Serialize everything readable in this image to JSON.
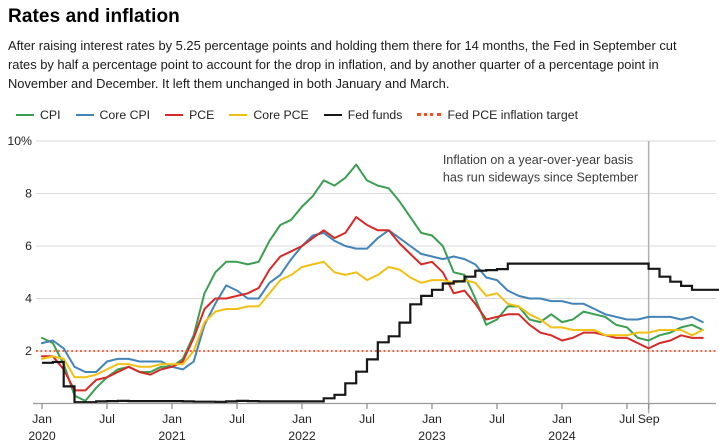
{
  "header": {
    "title": "Rates and inflation",
    "description": "After raising interest rates by 5.25 percentage points and holding them there for 14 months, the Fed in September cut rates by half a percentage point to account for the drop in inflation, and by another quarter of a percentage point in November and December. It left them unchanged in both January and March."
  },
  "colors": {
    "cpi": "#3b9e51",
    "core_cpi": "#4384b8",
    "pce": "#d62a28",
    "core_pce": "#f2c014",
    "fed_funds": "#161616",
    "target": "#e8522b",
    "grid": "#dadada",
    "axis": "#9a9a9a",
    "tick": "#8a8a8a",
    "label": "#222222",
    "marker": "#b0b0b0",
    "annotation": "#3c3c3c"
  },
  "legend": {
    "position": "top",
    "items": [
      {
        "label": "CPI",
        "color": "#3b9e51",
        "style": "solid"
      },
      {
        "label": "Core CPI",
        "color": "#4384b8",
        "style": "solid"
      },
      {
        "label": "PCE",
        "color": "#d62a28",
        "style": "solid"
      },
      {
        "label": "Core PCE",
        "color": "#f2c014",
        "style": "solid"
      },
      {
        "label": "Fed funds",
        "color": "#161616",
        "style": "solid"
      },
      {
        "label": "Fed PCE inflation target",
        "color": "#e8522b",
        "style": "dotted"
      }
    ]
  },
  "chart_data": {
    "type": "line",
    "x_start": "2020-01",
    "x_step_months": 1,
    "ylim": [
      0,
      10
    ],
    "yticks": [
      2,
      4,
      6,
      8,
      10
    ],
    "ytick_top_label": "10%",
    "grid": true,
    "xticks": [
      {
        "m": 0,
        "label": "Jan",
        "year": "2020"
      },
      {
        "m": 6,
        "label": "Jul",
        "year": ""
      },
      {
        "m": 12,
        "label": "Jan",
        "year": "2021"
      },
      {
        "m": 18,
        "label": "Jul",
        "year": ""
      },
      {
        "m": 24,
        "label": "Jan",
        "year": "2022"
      },
      {
        "m": 30,
        "label": "Jul",
        "year": ""
      },
      {
        "m": 36,
        "label": "Jan",
        "year": "2023"
      },
      {
        "m": 42,
        "label": "Jul",
        "year": ""
      },
      {
        "m": 48,
        "label": "Jan",
        "year": "2024"
      },
      {
        "m": 54,
        "label": "Jul",
        "year": ""
      },
      {
        "m": 56,
        "label": "Sep",
        "year": ""
      }
    ],
    "series": [
      {
        "name": "CPI",
        "color": "#3b9e51",
        "draw": "line",
        "values": [
          2.5,
          2.3,
          1.5,
          0.3,
          0.1,
          0.6,
          1.0,
          1.3,
          1.4,
          1.2,
          1.2,
          1.4,
          1.4,
          1.7,
          2.6,
          4.2,
          5.0,
          5.4,
          5.4,
          5.3,
          5.4,
          6.2,
          6.8,
          7.0,
          7.5,
          7.9,
          8.5,
          8.3,
          8.6,
          9.1,
          8.5,
          8.3,
          8.2,
          7.7,
          7.1,
          6.5,
          6.4,
          6.0,
          5.0,
          4.9,
          4.0,
          3.0,
          3.2,
          3.7,
          3.7,
          3.2,
          3.1,
          3.4,
          3.1,
          3.2,
          3.5,
          3.4,
          3.3,
          3.0,
          2.9,
          2.5,
          2.4,
          2.6,
          2.7,
          2.9,
          3.0,
          2.8
        ]
      },
      {
        "name": "Core CPI",
        "color": "#4384b8",
        "draw": "line",
        "values": [
          2.3,
          2.4,
          2.1,
          1.4,
          1.2,
          1.2,
          1.6,
          1.7,
          1.7,
          1.6,
          1.6,
          1.6,
          1.4,
          1.3,
          1.6,
          3.0,
          3.8,
          4.5,
          4.3,
          4.0,
          4.0,
          4.6,
          4.9,
          5.5,
          6.0,
          6.4,
          6.5,
          6.2,
          6.0,
          5.9,
          5.9,
          6.3,
          6.6,
          6.3,
          6.0,
          5.7,
          5.6,
          5.5,
          5.6,
          5.5,
          5.3,
          4.8,
          4.7,
          4.3,
          4.1,
          4.0,
          4.0,
          3.9,
          3.9,
          3.8,
          3.8,
          3.6,
          3.4,
          3.3,
          3.2,
          3.2,
          3.3,
          3.3,
          3.3,
          3.2,
          3.3,
          3.1
        ]
      },
      {
        "name": "PCE",
        "color": "#d62a28",
        "draw": "line",
        "values": [
          1.8,
          1.8,
          1.3,
          0.5,
          0.5,
          0.9,
          1.0,
          1.2,
          1.4,
          1.2,
          1.1,
          1.3,
          1.4,
          1.6,
          2.5,
          3.6,
          4.0,
          4.0,
          4.1,
          4.2,
          4.4,
          5.1,
          5.6,
          5.8,
          6.0,
          6.3,
          6.6,
          6.3,
          6.5,
          7.1,
          6.8,
          6.6,
          6.6,
          6.1,
          5.7,
          5.3,
          5.4,
          5.0,
          4.2,
          4.3,
          3.8,
          3.2,
          3.3,
          3.4,
          3.4,
          3.0,
          2.7,
          2.6,
          2.4,
          2.5,
          2.7,
          2.7,
          2.6,
          2.5,
          2.5,
          2.3,
          2.1,
          2.3,
          2.4,
          2.6,
          2.5,
          2.5
        ]
      },
      {
        "name": "Core PCE",
        "color": "#f2c014",
        "draw": "line",
        "values": [
          1.7,
          1.8,
          1.7,
          1.0,
          1.0,
          1.1,
          1.3,
          1.5,
          1.5,
          1.4,
          1.4,
          1.5,
          1.5,
          1.5,
          2.0,
          3.1,
          3.5,
          3.6,
          3.6,
          3.7,
          3.7,
          4.2,
          4.7,
          4.9,
          5.2,
          5.3,
          5.4,
          5.0,
          4.9,
          5.0,
          4.7,
          4.9,
          5.2,
          5.1,
          4.8,
          4.6,
          4.7,
          4.7,
          4.6,
          4.7,
          4.6,
          4.1,
          4.2,
          3.8,
          3.7,
          3.4,
          3.2,
          2.9,
          2.9,
          2.8,
          2.8,
          2.8,
          2.6,
          2.6,
          2.6,
          2.7,
          2.7,
          2.8,
          2.8,
          2.8,
          2.6,
          2.8
        ]
      },
      {
        "name": "Fed funds",
        "color": "#161616",
        "draw": "step",
        "values": [
          1.55,
          1.58,
          0.65,
          0.05,
          0.05,
          0.08,
          0.09,
          0.1,
          0.09,
          0.09,
          0.09,
          0.09,
          0.09,
          0.08,
          0.07,
          0.07,
          0.06,
          0.08,
          0.1,
          0.09,
          0.08,
          0.08,
          0.08,
          0.08,
          0.08,
          0.08,
          0.2,
          0.33,
          0.77,
          1.21,
          1.68,
          2.33,
          2.56,
          3.08,
          3.78,
          4.1,
          4.33,
          4.57,
          4.65,
          4.83,
          5.06,
          5.08,
          5.12,
          5.33,
          5.33,
          5.33,
          5.33,
          5.33,
          5.33,
          5.33,
          5.33,
          5.33,
          5.33,
          5.33,
          5.33,
          5.33,
          5.13,
          4.83,
          4.64,
          4.48,
          4.33,
          4.33,
          4.33
        ]
      }
    ],
    "target_line": {
      "label": "Fed PCE inflation target",
      "value": 2,
      "color": "#e8522b",
      "style": "dotted"
    },
    "marker_line": {
      "x_month": 56,
      "color": "#b0b0b0"
    },
    "annotation": {
      "lines": [
        "Inflation on a year-over-year basis",
        "has run sideways since September"
      ],
      "x_month": 37,
      "y_value": 9.12
    }
  }
}
